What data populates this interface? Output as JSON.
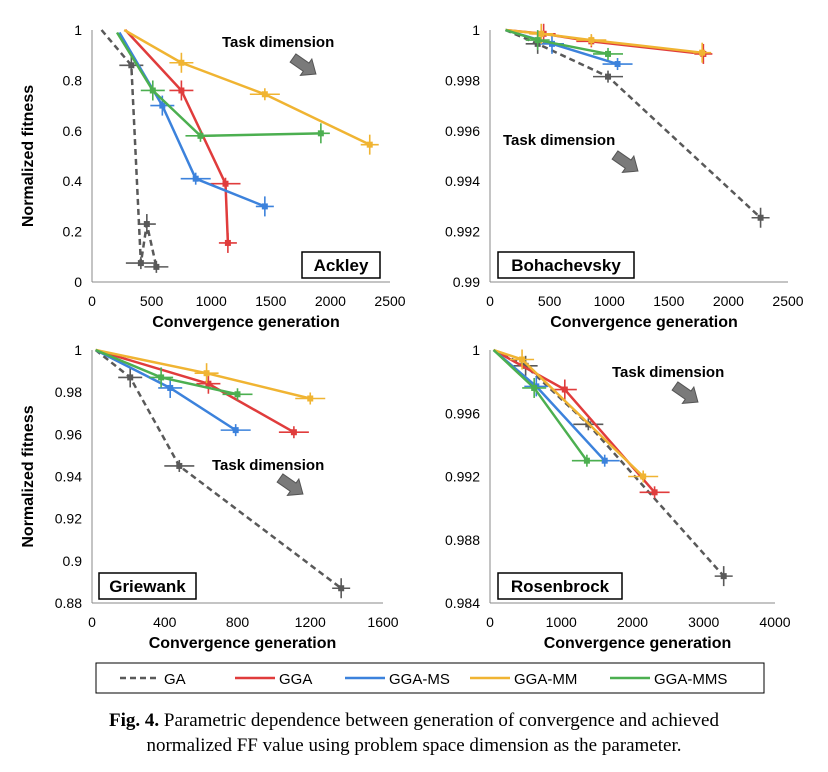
{
  "colors": {
    "GA": "#595959",
    "GGA": "#e03c3c",
    "GGA-MS": "#3c82dc",
    "GGA-MM": "#f0b432",
    "GGA-MMS": "#4caf50"
  },
  "legend": [
    "GA",
    "GGA",
    "GGA-MS",
    "GGA-MM",
    "GGA-MMS"
  ],
  "caption": {
    "label": "Fig. 4.",
    "text_line1": "Parametric dependence between generation of convergence and achieved",
    "text_line2": "normalized FF value using problem space dimension as the parameter."
  },
  "chart_data": [
    {
      "type": "line",
      "title": "Ackley",
      "annotation": "Task dimension",
      "xlabel": "Convergence generation",
      "ylabel": "Normalized fitness",
      "xlim": [
        0,
        2500
      ],
      "ylim": [
        0,
        1
      ],
      "xticks": [
        "0",
        "500",
        "1000",
        "1500",
        "2000",
        "2500"
      ],
      "yticks": [
        "0",
        "0.2",
        "0.4",
        "0.6",
        "0.8",
        "1"
      ],
      "series": [
        {
          "name": "GA",
          "points": [
            [
              80,
              1
            ],
            [
              330,
              0.86
            ],
            [
              410,
              0.075
            ],
            [
              460,
              0.23
            ],
            [
              540,
              0.06
            ]
          ]
        },
        {
          "name": "GGA",
          "points": [
            [
              280,
              1
            ],
            [
              750,
              0.76
            ],
            [
              1120,
              0.39
            ],
            [
              1140,
              0.155
            ]
          ]
        },
        {
          "name": "GGA-MS",
          "points": [
            [
              230,
              0.99
            ],
            [
              590,
              0.7
            ],
            [
              870,
              0.41
            ],
            [
              1450,
              0.3
            ]
          ]
        },
        {
          "name": "GGA-MM",
          "points": [
            [
              270,
              1
            ],
            [
              750,
              0.87
            ],
            [
              1450,
              0.745
            ],
            [
              2330,
              0.545
            ]
          ]
        },
        {
          "name": "GGA-MMS",
          "points": [
            [
              210,
              0.99
            ],
            [
              510,
              0.76
            ],
            [
              910,
              0.58
            ],
            [
              1920,
              0.59
            ]
          ]
        }
      ]
    },
    {
      "type": "line",
      "title": "Bohachevsky",
      "annotation": "Task dimension",
      "xlabel": "Convergence generation",
      "ylabel": "",
      "xlim": [
        0,
        2500
      ],
      "ylim": [
        0.99,
        1
      ],
      "xticks": [
        "0",
        "500",
        "1000",
        "1500",
        "2000",
        "2500"
      ],
      "yticks": [
        "0.99",
        "0.992",
        "0.994",
        "0.996",
        "0.998",
        "1"
      ],
      "series": [
        {
          "name": "GA",
          "points": [
            [
              130,
              1
            ],
            [
              400,
              0.99945
            ],
            [
              990,
              0.99815
            ],
            [
              2270,
              0.99255
            ]
          ]
        },
        {
          "name": "GGA",
          "points": [
            [
              130,
              1
            ],
            [
              450,
              0.99985
            ],
            [
              850,
              0.99955
            ],
            [
              1790,
              0.99905
            ]
          ]
        },
        {
          "name": "GGA-MS",
          "points": [
            [
              130,
              1
            ],
            [
              520,
              0.99945
            ],
            [
              1070,
              0.99865
            ]
          ]
        },
        {
          "name": "GGA-MM",
          "points": [
            [
              130,
              1
            ],
            [
              430,
              0.99985
            ],
            [
              850,
              0.9996
            ],
            [
              1780,
              0.9991
            ]
          ]
        },
        {
          "name": "GGA-MMS",
          "points": [
            [
              130,
              1
            ],
            [
              400,
              0.9996
            ],
            [
              990,
              0.99905
            ]
          ]
        }
      ]
    },
    {
      "type": "line",
      "title": "Griewank",
      "annotation": "Task dimension",
      "xlabel": "Convergence generation",
      "ylabel": "Normalized fitness",
      "xlim": [
        0,
        1600
      ],
      "ylim": [
        0.88,
        1
      ],
      "xticks": [
        "0",
        "400",
        "800",
        "1200",
        "1600"
      ],
      "yticks": [
        "0.88",
        "0.9",
        "0.92",
        "0.94",
        "0.96",
        "0.98",
        "1"
      ],
      "series": [
        {
          "name": "GA",
          "points": [
            [
              20,
              1
            ],
            [
              210,
              0.987
            ],
            [
              480,
              0.945
            ],
            [
              1370,
              0.887
            ]
          ]
        },
        {
          "name": "GGA",
          "points": [
            [
              20,
              1
            ],
            [
              640,
              0.984
            ],
            [
              1110,
              0.961
            ]
          ]
        },
        {
          "name": "GGA-MS",
          "points": [
            [
              20,
              1
            ],
            [
              430,
              0.982
            ],
            [
              790,
              0.962
            ]
          ]
        },
        {
          "name": "GGA-MM",
          "points": [
            [
              20,
              1
            ],
            [
              630,
              0.989
            ],
            [
              1200,
              0.977
            ]
          ]
        },
        {
          "name": "GGA-MMS",
          "points": [
            [
              20,
              1
            ],
            [
              380,
              0.987
            ],
            [
              800,
              0.979
            ]
          ]
        }
      ]
    },
    {
      "type": "line",
      "title": "Rosenbrock",
      "annotation": "Task dimension",
      "xlabel": "Convergence generation",
      "ylabel": "",
      "xlim": [
        0,
        4000
      ],
      "ylim": [
        0.984,
        1
      ],
      "xticks": [
        "0",
        "1000",
        "2000",
        "3000",
        "4000"
      ],
      "yticks": [
        "0.984",
        "0.988",
        "0.992",
        "0.996",
        "1"
      ],
      "series": [
        {
          "name": "GA",
          "points": [
            [
              50,
              1
            ],
            [
              500,
              0.999
            ],
            [
              1380,
              0.9953
            ],
            [
              3280,
              0.9857
            ]
          ]
        },
        {
          "name": "GGA",
          "points": [
            [
              50,
              1
            ],
            [
              1050,
              0.9975
            ],
            [
              2310,
              0.991
            ]
          ]
        },
        {
          "name": "GGA-MS",
          "points": [
            [
              50,
              1
            ],
            [
              650,
              0.9977
            ],
            [
              1610,
              0.993
            ]
          ]
        },
        {
          "name": "GGA-MM",
          "points": [
            [
              50,
              1
            ],
            [
              450,
              0.9994
            ],
            [
              2150,
              0.992
            ]
          ]
        },
        {
          "name": "GGA-MMS",
          "points": [
            [
              50,
              1
            ],
            [
              620,
              0.9976
            ],
            [
              1360,
              0.993
            ]
          ]
        }
      ]
    }
  ]
}
